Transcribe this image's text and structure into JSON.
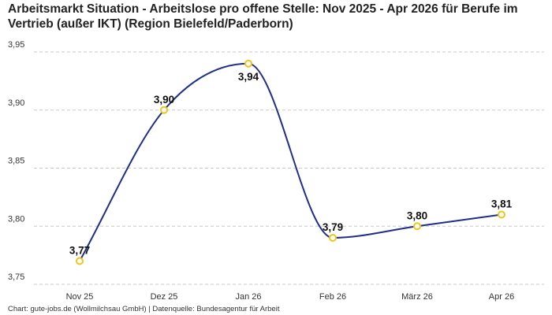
{
  "title": "Arbeitsmarkt Situation - Arbeitslose pro offene Stelle: Nov 2025 - Apr 2026 für Berufe im Vertrieb (außer IKT) (Region Bielefeld/Paderborn)",
  "source": "Chart: gute-jobs.de (Wollmilchsau GmbH) | Datenquelle: Bundesagentur für Arbeit",
  "colors": {
    "line": "#1f2f8a",
    "marker": "#f2c418",
    "grid": "#c8c8c8"
  },
  "chart_data": {
    "type": "line",
    "categories": [
      "Nov 25",
      "Dez 25",
      "Jan 26",
      "Feb 26",
      "März 26",
      "Apr 26"
    ],
    "values": [
      3.77,
      3.9,
      3.94,
      3.79,
      3.8,
      3.81
    ],
    "value_labels": [
      "3,77",
      "3,90",
      "3,94",
      "3,79",
      "3,80",
      "3,81"
    ],
    "yticks": [
      3.75,
      3.8,
      3.85,
      3.9,
      3.95
    ],
    "ytick_labels": [
      "3,75",
      "3,80",
      "3,85",
      "3,90",
      "3,95"
    ],
    "ylim": [
      3.75,
      3.95
    ],
    "grid": true,
    "legend": "none"
  }
}
